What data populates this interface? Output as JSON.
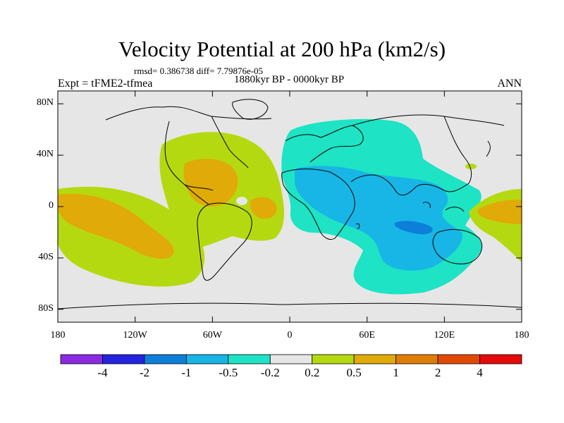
{
  "title": "Velocity Potential at 200 hPa (km2/s)",
  "stats_line": "rmsd= 0.386738 diff= 7.79876e-05",
  "period": "1880kyr BP - 0000kyr BP",
  "experiment": "Expt = tFME2-tfmea",
  "season": "ANN",
  "lat_labels": [
    "80N",
    "40N",
    "0",
    "40S",
    "80S"
  ],
  "lon_labels": [
    "180",
    "120W",
    "60W",
    "0",
    "60E",
    "120E",
    "180"
  ],
  "colorbar": {
    "labels": [
      "-4",
      "-2",
      "-1",
      "-0.5",
      "-0.2",
      "0.2",
      "0.5",
      "1",
      "2",
      "4"
    ],
    "colors": [
      "#8a2be2",
      "#2323e0",
      "#0d7fd8",
      "#17b6e6",
      "#1ee3c4",
      "#e6e6e6",
      "#b5d910",
      "#e0aa08",
      "#e07d05",
      "#e04a00",
      "#e60a0a"
    ]
  }
}
